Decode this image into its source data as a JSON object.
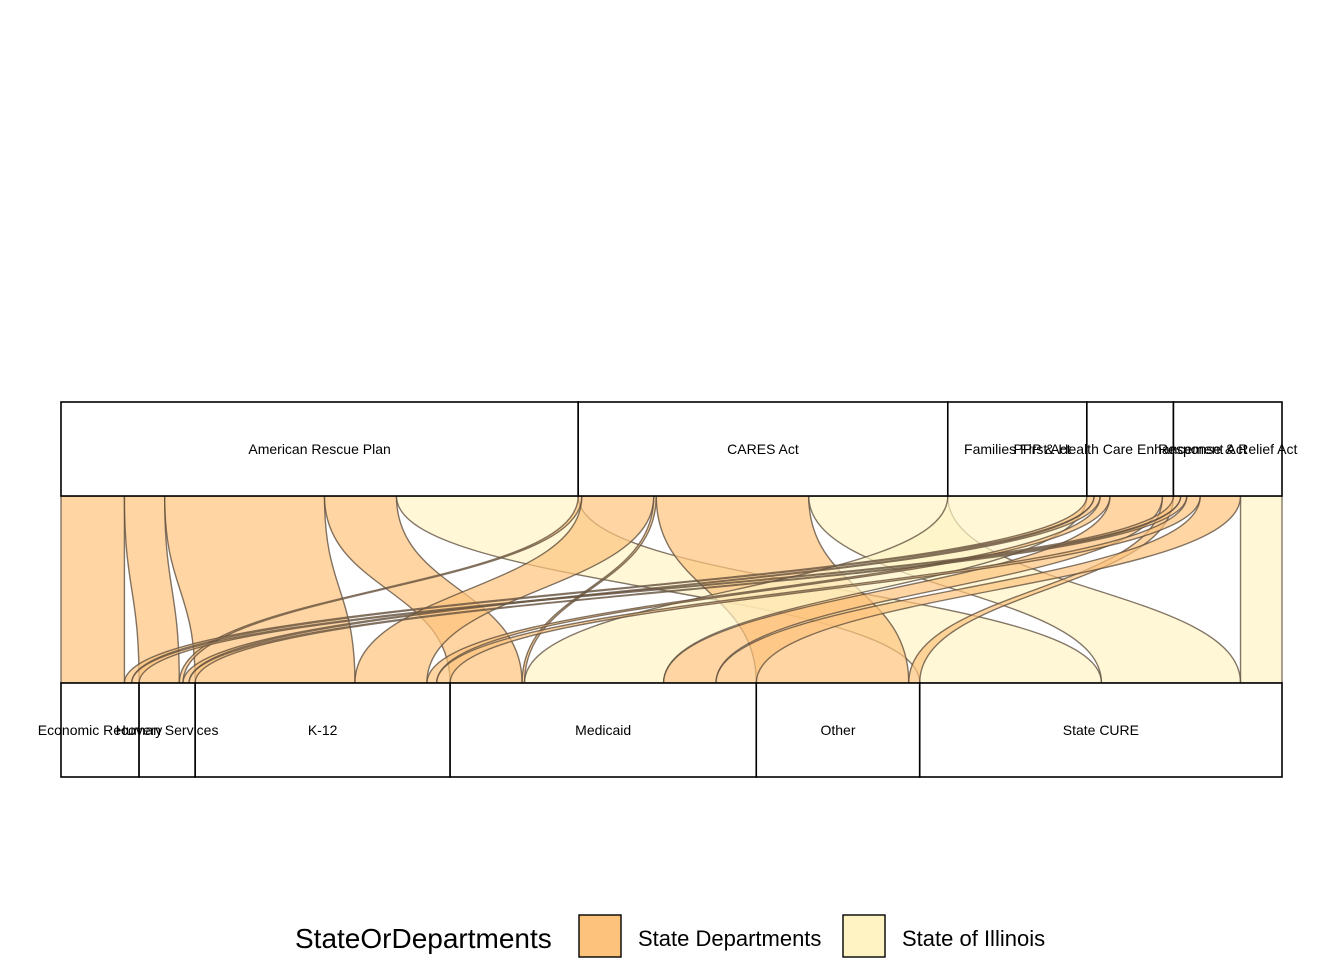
{
  "chart_data": {
    "type": "alluvial",
    "axes": [
      {
        "strata": [
          {
            "label": "American Rescue Plan",
            "size": 424
          },
          {
            "label": "CARES Act",
            "size": 303
          },
          {
            "label": "Families First Act",
            "size": 114
          },
          {
            "label": "PPP & Health Care Enhancement Act",
            "size": 71
          },
          {
            "label": "Response & Relief Act",
            "size": 89
          }
        ]
      },
      {
        "strata": [
          {
            "label": "Economic Recovery",
            "size": 64
          },
          {
            "label": "Human Services",
            "size": 46
          },
          {
            "label": "K-12",
            "size": 209
          },
          {
            "label": "Medicaid",
            "size": 251
          },
          {
            "label": "Other",
            "size": 134
          },
          {
            "label": "State CURE",
            "size": 297
          }
        ]
      }
    ],
    "fill_variable": "StateOrDepartments",
    "colors": {
      "State Departments": "#fdc37c",
      "State of Illinois": "#fff3c4"
    },
    "flows": [
      {
        "from": "American Rescue Plan",
        "to": "Economic Recovery",
        "group": "State Departments",
        "value": 52
      },
      {
        "from": "American Rescue Plan",
        "to": "Human Services",
        "group": "State Departments",
        "value": 33
      },
      {
        "from": "American Rescue Plan",
        "to": "K-12",
        "group": "State Departments",
        "value": 131
      },
      {
        "from": "American Rescue Plan",
        "to": "Medicaid",
        "group": "State Departments",
        "value": 59
      },
      {
        "from": "American Rescue Plan",
        "to": "State CURE",
        "group": "State of Illinois",
        "value": 149
      },
      {
        "from": "CARES Act",
        "to": "Human Services",
        "group": "State Departments",
        "value": 3
      },
      {
        "from": "CARES Act",
        "to": "K-12",
        "group": "State Departments",
        "value": 59
      },
      {
        "from": "CARES Act",
        "to": "Medicaid",
        "group": "State Departments",
        "value": 2
      },
      {
        "from": "CARES Act",
        "to": "Other",
        "group": "State Departments",
        "value": 125
      },
      {
        "from": "CARES Act",
        "to": "State CURE",
        "group": "State of Illinois",
        "value": 114
      },
      {
        "from": "Families First Act",
        "to": "Medicaid",
        "group": "State of Illinois",
        "value": 114
      },
      {
        "from": "PPP & Health Care Enhancement Act",
        "to": "Economic Recovery",
        "group": "State Departments",
        "value": 6
      },
      {
        "from": "PPP & Health Care Enhancement Act",
        "to": "Human Services",
        "group": "State Departments",
        "value": 5
      },
      {
        "from": "PPP & Health Care Enhancement Act",
        "to": "K-12",
        "group": "State Departments",
        "value": 8
      },
      {
        "from": "PPP & Health Care Enhancement Act",
        "to": "Medicaid",
        "group": "State Departments",
        "value": 43
      },
      {
        "from": "PPP & Health Care Enhancement Act",
        "to": "Other",
        "group": "State Departments",
        "value": 9
      },
      {
        "from": "Response & Relief Act",
        "to": "Economic Recovery",
        "group": "State Departments",
        "value": 6
      },
      {
        "from": "Response & Relief Act",
        "to": "Human Services",
        "group": "State Departments",
        "value": 5
      },
      {
        "from": "Response & Relief Act",
        "to": "K-12",
        "group": "State Departments",
        "value": 11
      },
      {
        "from": "Response & Relief Act",
        "to": "Medicaid",
        "group": "State Departments",
        "value": 33
      },
      {
        "from": "Response & Relief Act",
        "to": "State CURE",
        "group": "State of Illinois",
        "value": 34
      }
    ],
    "legend": {
      "title": "StateOrDepartments",
      "entries": [
        "State Departments",
        "State of Illinois"
      ],
      "position": "bottom"
    },
    "grid": false
  }
}
